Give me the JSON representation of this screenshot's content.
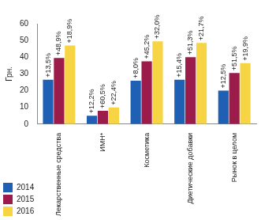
{
  "chart_data": {
    "type": "bar",
    "y_label": "Грн.",
    "categories": [
      "Лекарственные средства",
      "ИМН*",
      "Косметика",
      "Диетические добавки",
      "Рынок в целом"
    ],
    "series": [
      {
        "name": "2014",
        "color": "#1f5fb4",
        "values": [
          26.5,
          5,
          26,
          26.5,
          20
        ],
        "annotations": [
          "+13,5%",
          "+12,2%",
          "+8,0%",
          "+15,4%",
          "+12,5%"
        ]
      },
      {
        "name": "2015",
        "color": "#9b1b4b",
        "values": [
          39.5,
          8,
          37.5,
          40,
          30.5
        ],
        "annotations": [
          "+48,9%",
          "+60,5%",
          "+45,2%",
          "+51,3%",
          "+51,5%"
        ]
      },
      {
        "name": "2016",
        "color": "#f6d443",
        "values": [
          47,
          10,
          49.5,
          48.5,
          36.5
        ],
        "annotations": [
          "+18,9%",
          "+22,4%",
          "+32,0%",
          "+21,7%",
          "+19,9%"
        ]
      }
    ],
    "ylim": [
      0,
      60
    ],
    "yticks": [
      0,
      10,
      20,
      30,
      40,
      50,
      60
    ],
    "grid": false,
    "legend": "bottom-left"
  }
}
